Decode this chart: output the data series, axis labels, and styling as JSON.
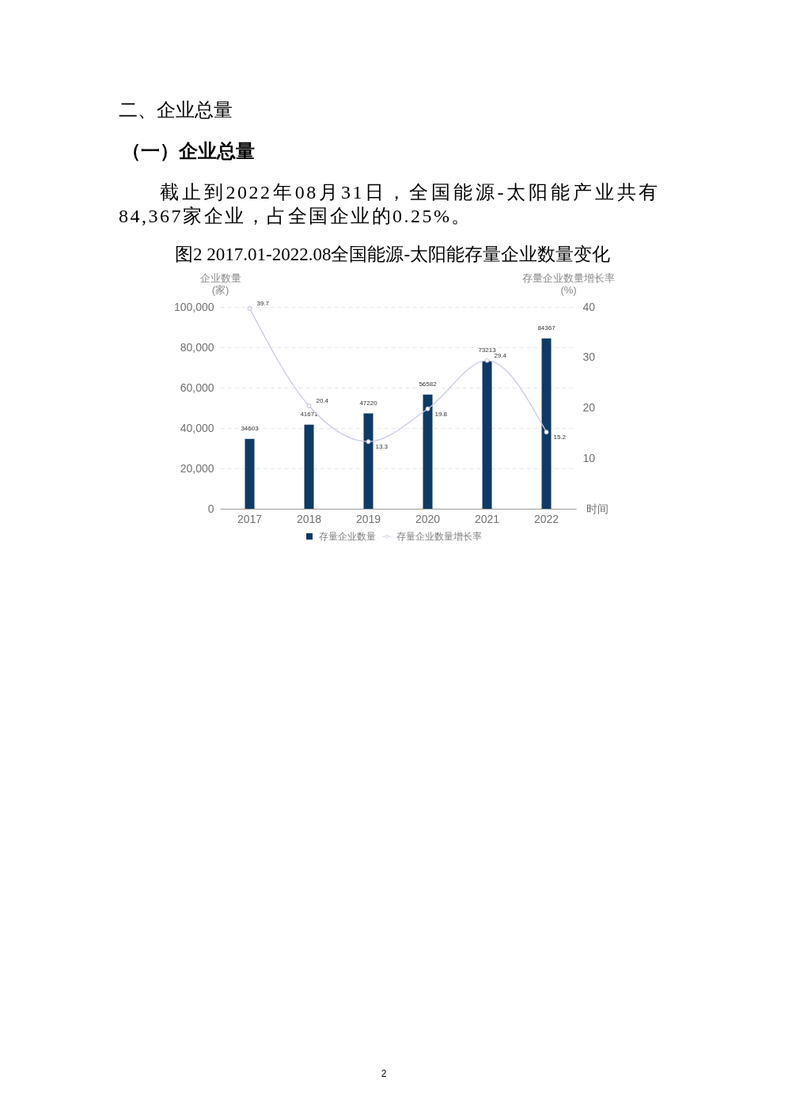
{
  "chart_data": {
    "type": "bar",
    "title": "图2 2017.01-2022.08全国能源-太阳能存量企业数量变化",
    "annotations": [
      "二、企业总量",
      "（一）企业总量",
      "截止到2022年08月31日，全国能源-太阳能产业共有84,367家企业，占全国企业的0.25%。",
      "2"
    ],
    "xlabel": "时间",
    "ylabel": "企业数量\n(家)",
    "y2label": "存量企业数量增长率\n(%)",
    "categories": [
      "2017",
      "2018",
      "2019",
      "2020",
      "2021",
      "2022"
    ],
    "series": [
      {
        "name": "存量企业数量",
        "color": "#0e3a66",
        "values": [
          34603,
          41671,
          47220,
          56582,
          73213,
          84367
        ]
      },
      {
        "name": "存量企业数量增长率",
        "type": "line",
        "axis": "y2",
        "color": "#cccae3",
        "values": [
          39.7,
          20.4,
          13.3,
          19.8,
          29.4,
          15.2
        ]
      }
    ],
    "ylim": [
      0,
      100000
    ],
    "yticks": [
      0,
      {
        "value": 20000,
        "label": "20,000"
      },
      {
        "value": 40000,
        "label": "40,000"
      },
      {
        "value": 60000,
        "label": "60,000"
      },
      {
        "value": 80000,
        "label": "80,000"
      },
      {
        "value": 100000,
        "label": "100,000"
      }
    ],
    "y2lim": [
      0,
      40
    ],
    "y2ticks": [
      10,
      20,
      30,
      40
    ],
    "grid": "y",
    "legend": "bottom",
    "marker": "circle",
    "line_style": "solid",
    "data_labels": true
  }
}
